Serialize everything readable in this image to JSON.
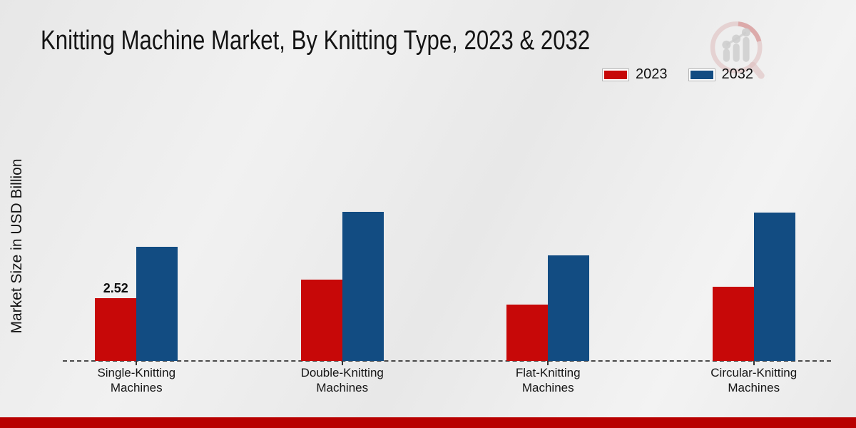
{
  "title": "Knitting Machine Market, By Knitting Type, 2023 & 2032",
  "chart_data": {
    "type": "bar",
    "title": "Knitting Machine Market, By Knitting Type, 2023 & 2032",
    "ylabel": "Market Size in USD Billion",
    "xlabel": "",
    "categories": [
      "Single-Knitting\nMachines",
      "Double-Knitting\nMachines",
      "Flat-Knitting\nMachines",
      "Circular-Knitting\nMachines"
    ],
    "series": [
      {
        "name": "2023",
        "color": "#c70808",
        "values": [
          2.52,
          3.26,
          2.27,
          2.98
        ]
      },
      {
        "name": "2032",
        "color": "#124c82",
        "values": [
          4.57,
          5.96,
          4.24,
          5.94
        ]
      }
    ],
    "bar_labels": [
      {
        "series": 0,
        "category": 0,
        "text": "2.52"
      }
    ],
    "ylim": [
      0,
      6.5
    ],
    "grid": false,
    "legend_position": "top-right",
    "axis_style": "dashed-baseline"
  },
  "colors": {
    "footer_strip": "#b80000",
    "background": "#ebebeb",
    "axis_line": "#4a4a4a",
    "text": "#1a1a1a"
  }
}
